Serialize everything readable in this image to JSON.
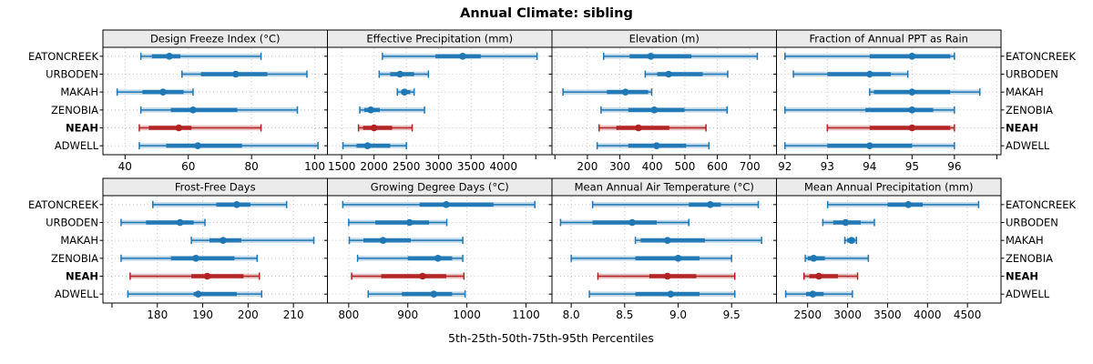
{
  "title": "Annual Climate: sibling",
  "caption": "5th-25th-50th-75th-95th Percentiles",
  "percentiles": [
    "5th",
    "25th",
    "50th",
    "75th",
    "95th"
  ],
  "sites": [
    {
      "name": "EATONCREEK",
      "highlight": false
    },
    {
      "name": "URBODEN",
      "highlight": false
    },
    {
      "name": "MAKAH",
      "highlight": false
    },
    {
      "name": "ZENOBIA",
      "highlight": false
    },
    {
      "name": "NEAH",
      "highlight": true
    },
    {
      "name": "ADWELL",
      "highlight": false
    }
  ],
  "colors": {
    "series_blue": "#1F77B4",
    "highlight_red": "#B22222",
    "strip_bg": "#EBEBEB",
    "panel_border": "#000000",
    "grid": "#C9C9C9",
    "text": "#000000"
  },
  "chart_data": [
    {
      "type": "interval-dotplot",
      "title": "Design Freeze Index (°C)",
      "row": 0,
      "col": 0,
      "xlim": [
        33,
        104
      ],
      "ticks": [
        {
          "v": 40,
          "label": "40"
        },
        {
          "v": 60,
          "label": "60"
        },
        {
          "v": 80,
          "label": "80"
        },
        {
          "v": 100,
          "label": "100"
        }
      ],
      "series": [
        {
          "site": "EATONCREEK",
          "p5": 45,
          "p25": 48.5,
          "p50": 54,
          "p75": 57.5,
          "p95": 83
        },
        {
          "site": "URBODEN",
          "p5": 58,
          "p25": 64,
          "p50": 75,
          "p75": 85,
          "p95": 97.5
        },
        {
          "site": "MAKAH",
          "p5": 37.5,
          "p25": 45.5,
          "p50": 52,
          "p75": 58.5,
          "p95": 61.5
        },
        {
          "site": "ZENOBIA",
          "p5": 45,
          "p25": 54.5,
          "p50": 61.5,
          "p75": 75.5,
          "p95": 94.5
        },
        {
          "site": "NEAH",
          "p5": 44.5,
          "p25": 47.5,
          "p50": 57,
          "p75": 61,
          "p95": 83
        },
        {
          "site": "ADWELL",
          "p5": 44.5,
          "p25": 53,
          "p50": 63,
          "p75": 77,
          "p95": 101
        }
      ]
    },
    {
      "type": "interval-dotplot",
      "title": "Effective Precipitation (mm)",
      "row": 0,
      "col": 1,
      "xlim": [
        1280,
        4750
      ],
      "ticks": [
        {
          "v": 1500,
          "label": "1500"
        },
        {
          "v": 2000,
          "label": "2000"
        },
        {
          "v": 2500,
          "label": "2500"
        },
        {
          "v": 3000,
          "label": "3000"
        },
        {
          "v": 3500,
          "label": "3500"
        },
        {
          "v": 4000,
          "label": "4000"
        },
        {
          "v": 4500,
          "label": ""
        }
      ],
      "series": [
        {
          "site": "EATONCREEK",
          "p5": 2130,
          "p25": 2950,
          "p50": 3370,
          "p75": 3650,
          "p95": 4520
        },
        {
          "site": "URBODEN",
          "p5": 2080,
          "p25": 2250,
          "p50": 2400,
          "p75": 2620,
          "p95": 2840
        },
        {
          "site": "MAKAH",
          "p5": 2360,
          "p25": 2420,
          "p50": 2470,
          "p75": 2560,
          "p95": 2620
        },
        {
          "site": "ZENOBIA",
          "p5": 1780,
          "p25": 1850,
          "p50": 1950,
          "p75": 2090,
          "p95": 2780
        },
        {
          "site": "NEAH",
          "p5": 1760,
          "p25": 1830,
          "p50": 2000,
          "p75": 2280,
          "p95": 2590
        },
        {
          "site": "ADWELL",
          "p5": 1520,
          "p25": 1730,
          "p50": 1900,
          "p75": 2250,
          "p95": 2500
        }
      ]
    },
    {
      "type": "interval-dotplot",
      "title": "Elevation (m)",
      "row": 0,
      "col": 2,
      "xlim": [
        91,
        782
      ],
      "ticks": [
        {
          "v": 100,
          "label": ""
        },
        {
          "v": 200,
          "label": "200"
        },
        {
          "v": 300,
          "label": "300"
        },
        {
          "v": 400,
          "label": "400"
        },
        {
          "v": 500,
          "label": "500"
        },
        {
          "v": 600,
          "label": "600"
        },
        {
          "v": 700,
          "label": "700"
        }
      ],
      "series": [
        {
          "site": "EATONCREEK",
          "p5": 250,
          "p25": 330,
          "p50": 395,
          "p75": 520,
          "p95": 723
        },
        {
          "site": "URBODEN",
          "p5": 378,
          "p25": 415,
          "p50": 450,
          "p75": 555,
          "p95": 632
        },
        {
          "site": "MAKAH",
          "p5": 125,
          "p25": 260,
          "p50": 317,
          "p75": 387,
          "p95": 398
        },
        {
          "site": "ZENOBIA",
          "p5": 242,
          "p25": 326,
          "p50": 406,
          "p75": 499,
          "p95": 630
        },
        {
          "site": "NEAH",
          "p5": 236,
          "p25": 289,
          "p50": 357,
          "p75": 452,
          "p95": 565
        },
        {
          "site": "ADWELL",
          "p5": 230,
          "p25": 326,
          "p50": 413,
          "p75": 504,
          "p95": 574
        }
      ]
    },
    {
      "type": "interval-dotplot",
      "title": "Fraction of Annual PPT as Rain",
      "row": 0,
      "col": 3,
      "xlim": [
        91.8,
        97.1
      ],
      "ticks": [
        {
          "v": 92,
          "label": "92"
        },
        {
          "v": 93,
          "label": "93"
        },
        {
          "v": 94,
          "label": "94"
        },
        {
          "v": 95,
          "label": "95"
        },
        {
          "v": 96,
          "label": "96"
        },
        {
          "v": 97,
          "label": ""
        }
      ],
      "series": [
        {
          "site": "EATONCREEK",
          "p5": 92,
          "p25": 94,
          "p50": 95,
          "p75": 95.9,
          "p95": 96
        },
        {
          "site": "URBODEN",
          "p5": 92.2,
          "p25": 93,
          "p50": 94,
          "p75": 94.5,
          "p95": 94.9
        },
        {
          "site": "MAKAH",
          "p5": 94,
          "p25": 94.1,
          "p50": 95,
          "p75": 95.9,
          "p95": 96.6
        },
        {
          "site": "ZENOBIA",
          "p5": 92,
          "p25": 93.9,
          "p50": 95,
          "p75": 95.5,
          "p95": 96
        },
        {
          "site": "NEAH",
          "p5": 93,
          "p25": 94,
          "p50": 95,
          "p75": 95.9,
          "p95": 96
        },
        {
          "site": "ADWELL",
          "p5": 92,
          "p25": 93,
          "p50": 94,
          "p75": 95,
          "p95": 96
        }
      ]
    },
    {
      "type": "interval-dotplot",
      "title": "Frost-Free Days",
      "row": 1,
      "col": 0,
      "xlim": [
        168,
        217.5
      ],
      "ticks": [
        {
          "v": 170,
          "label": ""
        },
        {
          "v": 180,
          "label": "180"
        },
        {
          "v": 190,
          "label": "190"
        },
        {
          "v": 200,
          "label": "200"
        },
        {
          "v": 210,
          "label": "210"
        }
      ],
      "series": [
        {
          "site": "EATONCREEK",
          "p5": 179,
          "p25": 193,
          "p50": 197.5,
          "p75": 200.5,
          "p95": 208.5
        },
        {
          "site": "URBODEN",
          "p5": 172,
          "p25": 177.5,
          "p50": 185,
          "p75": 188,
          "p95": 190.5
        },
        {
          "site": "MAKAH",
          "p5": 187.5,
          "p25": 191.5,
          "p50": 194.5,
          "p75": 198.5,
          "p95": 214.5
        },
        {
          "site": "ZENOBIA",
          "p5": 172,
          "p25": 183,
          "p50": 188.5,
          "p75": 197,
          "p95": 202
        },
        {
          "site": "NEAH",
          "p5": 174,
          "p25": 187.5,
          "p50": 191,
          "p75": 199,
          "p95": 202.5
        },
        {
          "site": "ADWELL",
          "p5": 173.5,
          "p25": 188,
          "p50": 189,
          "p75": 197.5,
          "p95": 203
        }
      ]
    },
    {
      "type": "interval-dotplot",
      "title": "Growing Degree Days (°C)",
      "row": 1,
      "col": 1,
      "xlim": [
        764,
        1144
      ],
      "ticks": [
        {
          "v": 800,
          "label": "800"
        },
        {
          "v": 900,
          "label": "900"
        },
        {
          "v": 1000,
          "label": "1000"
        },
        {
          "v": 1100,
          "label": "1100"
        }
      ],
      "series": [
        {
          "site": "EATONCREEK",
          "p5": 790,
          "p25": 920,
          "p50": 965,
          "p75": 1045,
          "p95": 1115
        },
        {
          "site": "URBODEN",
          "p5": 800,
          "p25": 845,
          "p50": 903,
          "p75": 936,
          "p95": 966
        },
        {
          "site": "MAKAH",
          "p5": 801,
          "p25": 825,
          "p50": 858,
          "p75": 905,
          "p95": 993
        },
        {
          "site": "ZENOBIA",
          "p5": 815,
          "p25": 900,
          "p50": 951,
          "p75": 975,
          "p95": 993
        },
        {
          "site": "NEAH",
          "p5": 805,
          "p25": 855,
          "p50": 925,
          "p75": 965,
          "p95": 995
        },
        {
          "site": "ADWELL",
          "p5": 833,
          "p25": 890,
          "p50": 944,
          "p75": 975,
          "p95": 997
        }
      ]
    },
    {
      "type": "interval-dotplot",
      "title": "Mean Annual Air Temperature (°C)",
      "row": 1,
      "col": 2,
      "xlim": [
        7.82,
        9.92
      ],
      "ticks": [
        {
          "v": 8.0,
          "label": "8.0"
        },
        {
          "v": 8.5,
          "label": "8.5"
        },
        {
          "v": 9.0,
          "label": "9.0"
        },
        {
          "v": 9.5,
          "label": "9.5"
        }
      ],
      "series": [
        {
          "site": "EATONCREEK",
          "p5": 8.2,
          "p25": 9.1,
          "p50": 9.3,
          "p75": 9.4,
          "p95": 9.75
        },
        {
          "site": "URBODEN",
          "p5": 7.9,
          "p25": 8.2,
          "p50": 8.57,
          "p75": 8.8,
          "p95": 9.1
        },
        {
          "site": "MAKAH",
          "p5": 8.6,
          "p25": 8.65,
          "p50": 8.9,
          "p75": 9.25,
          "p95": 9.78
        },
        {
          "site": "ZENOBIA",
          "p5": 8.0,
          "p25": 8.6,
          "p50": 9.0,
          "p75": 9.2,
          "p95": 9.5
        },
        {
          "site": "NEAH",
          "p5": 8.25,
          "p25": 8.73,
          "p50": 8.9,
          "p75": 9.17,
          "p95": 9.53
        },
        {
          "site": "ADWELL",
          "p5": 8.17,
          "p25": 8.6,
          "p50": 8.93,
          "p75": 9.2,
          "p95": 9.53
        }
      ]
    },
    {
      "type": "interval-dotplot",
      "title": "Mean Annual Precipitation (mm)",
      "row": 1,
      "col": 3,
      "xlim": [
        2110,
        4920
      ],
      "ticks": [
        {
          "v": 2500,
          "label": "2500"
        },
        {
          "v": 3000,
          "label": "3000"
        },
        {
          "v": 3500,
          "label": "3500"
        },
        {
          "v": 4000,
          "label": "4000"
        },
        {
          "v": 4500,
          "label": "4500"
        }
      ],
      "series": [
        {
          "site": "EATONCREEK",
          "p5": 2750,
          "p25": 3500,
          "p50": 3760,
          "p75": 3940,
          "p95": 4640
        },
        {
          "site": "URBODEN",
          "p5": 2690,
          "p25": 2820,
          "p50": 2975,
          "p75": 3165,
          "p95": 3335
        },
        {
          "site": "MAKAH",
          "p5": 2965,
          "p25": 2995,
          "p50": 3050,
          "p75": 3090,
          "p95": 3110
        },
        {
          "site": "ZENOBIA",
          "p5": 2470,
          "p25": 2500,
          "p50": 2575,
          "p75": 2715,
          "p95": 3260
        },
        {
          "site": "NEAH",
          "p5": 2455,
          "p25": 2520,
          "p50": 2640,
          "p75": 2880,
          "p95": 3125
        },
        {
          "site": "ADWELL",
          "p5": 2225,
          "p25": 2480,
          "p50": 2565,
          "p75": 2700,
          "p95": 3060
        }
      ]
    }
  ]
}
